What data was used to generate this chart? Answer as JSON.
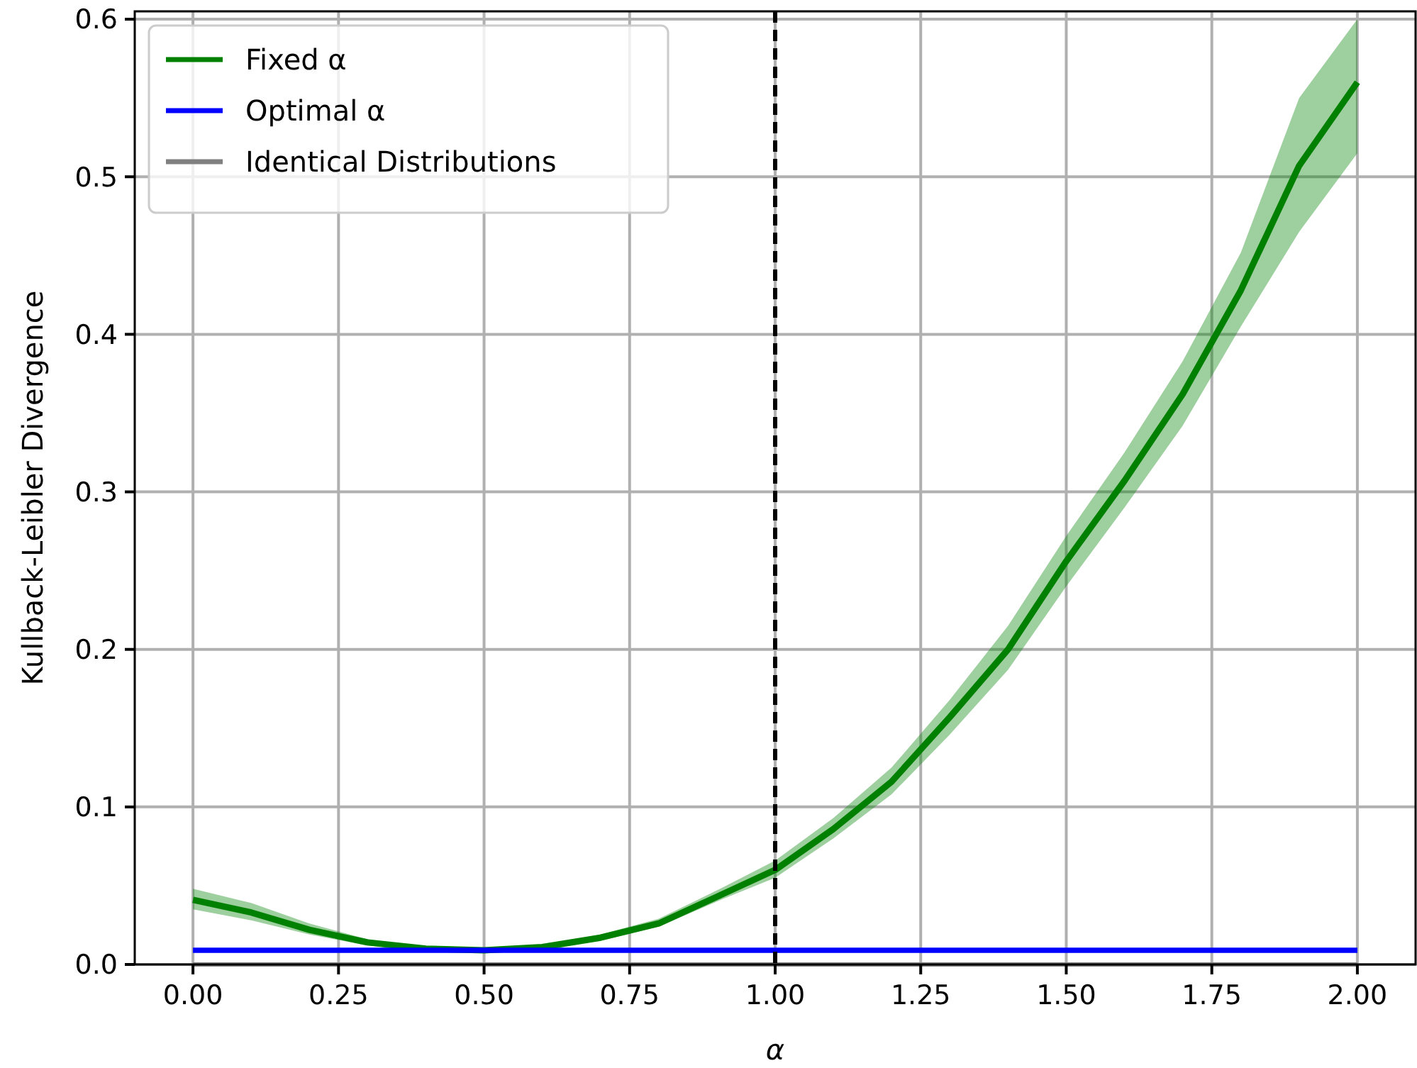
{
  "chart_data": {
    "type": "line",
    "xlabel": "α",
    "ylabel": "Kullback-Leibler Divergence",
    "xlim": [
      -0.1,
      2.1
    ],
    "ylim": [
      0,
      0.605
    ],
    "xticks": [
      {
        "value": 0,
        "label": "0.00"
      },
      {
        "value": 0.25,
        "label": "0.25"
      },
      {
        "value": 0.5,
        "label": "0.50"
      },
      {
        "value": 0.75,
        "label": "0.75"
      },
      {
        "value": 1,
        "label": "1.00"
      },
      {
        "value": 1.25,
        "label": "1.25"
      },
      {
        "value": 1.5,
        "label": "1.50"
      },
      {
        "value": 1.75,
        "label": "1.75"
      },
      {
        "value": 2,
        "label": "2.00"
      }
    ],
    "yticks": [
      {
        "value": 0,
        "label": "0.0"
      },
      {
        "value": 0.1,
        "label": "0.1"
      },
      {
        "value": 0.2,
        "label": "0.2"
      },
      {
        "value": 0.3,
        "label": "0.3"
      },
      {
        "value": 0.4,
        "label": "0.4"
      },
      {
        "value": 0.5,
        "label": "0.5"
      },
      {
        "value": 0.6,
        "label": "0.6"
      }
    ],
    "x": [
      0,
      0.1,
      0.2,
      0.3,
      0.4,
      0.5,
      0.6,
      0.7,
      0.8,
      0.9,
      1.0,
      1.1,
      1.2,
      1.3,
      1.4,
      1.5,
      1.6,
      1.7,
      1.8,
      1.9,
      2.0
    ],
    "grid": true,
    "legend": "top left",
    "line_style": "solid",
    "marker": "none",
    "series": [
      {
        "name": "Fixed α",
        "color": "#008000",
        "values": [
          0.041,
          0.033,
          0.022,
          0.014,
          0.01,
          0.009,
          0.011,
          0.017,
          0.026,
          0.043,
          0.06,
          0.086,
          0.116,
          0.157,
          0.2,
          0.256,
          0.307,
          0.362,
          0.428,
          0.507,
          0.56
        ],
        "lower": [
          0.035,
          0.028,
          0.019,
          0.012,
          0.009,
          0.008,
          0.01,
          0.015,
          0.024,
          0.04,
          0.055,
          0.08,
          0.108,
          0.146,
          0.187,
          0.24,
          0.29,
          0.342,
          0.405,
          0.465,
          0.515
        ],
        "upper": [
          0.048,
          0.039,
          0.026,
          0.016,
          0.011,
          0.01,
          0.012,
          0.019,
          0.029,
          0.047,
          0.066,
          0.093,
          0.125,
          0.168,
          0.215,
          0.272,
          0.325,
          0.383,
          0.452,
          0.55,
          0.6
        ]
      },
      {
        "name": "Optimal α",
        "color": "#0000ff",
        "values": [
          0.009,
          0.009,
          0.009,
          0.009,
          0.009,
          0.009,
          0.009,
          0.009,
          0.009,
          0.009,
          0.009,
          0.009,
          0.009,
          0.009,
          0.009,
          0.009,
          0.009,
          0.009,
          0.009,
          0.009,
          0.009
        ]
      },
      {
        "name": "Identical Distributions",
        "color": "#808080",
        "values": [
          0,
          0,
          0,
          0,
          0,
          0,
          0,
          0,
          0,
          0,
          0,
          0,
          0,
          0,
          0,
          0,
          0,
          0,
          0,
          0,
          0
        ]
      }
    ],
    "ref_lines": [
      {
        "axis": "x",
        "value": 1,
        "color": "#000000",
        "line_style": "dashed"
      }
    ]
  }
}
